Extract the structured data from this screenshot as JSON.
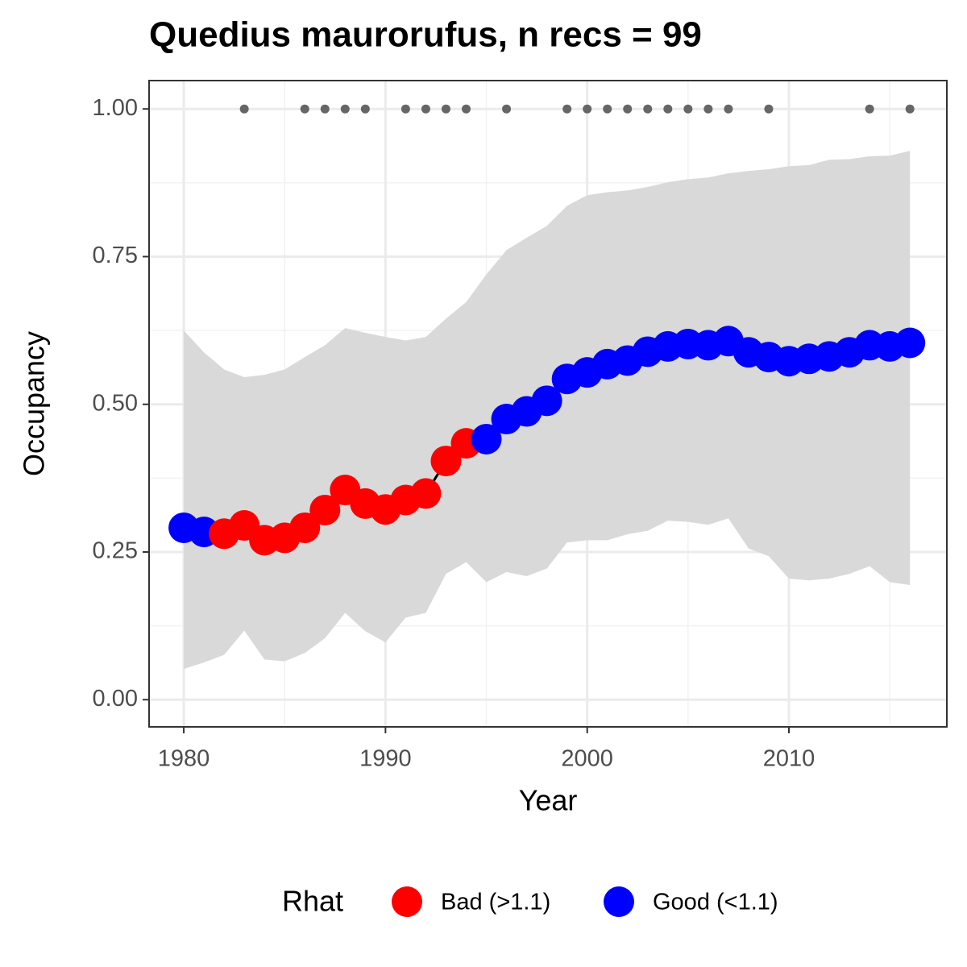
{
  "chart_data": {
    "type": "line",
    "title": "Quedius maurorufus, n recs = 99",
    "x_label": "Year",
    "y_label": "Occupancy",
    "legend_title": "Rhat",
    "legend_position": "bottom",
    "x": [
      1980,
      1981,
      1982,
      1983,
      1984,
      1985,
      1986,
      1987,
      1988,
      1989,
      1990,
      1991,
      1992,
      1993,
      1994,
      1995,
      1996,
      1997,
      1998,
      1999,
      2000,
      2001,
      2002,
      2003,
      2004,
      2005,
      2006,
      2007,
      2008,
      2009,
      2010,
      2011,
      2012,
      2013,
      2014,
      2015,
      2016
    ],
    "series": [
      {
        "name": "Bad (>1.1)",
        "color": "#ff0000",
        "values": [
          null,
          null,
          0.281,
          0.295,
          0.27,
          0.274,
          0.291,
          0.321,
          0.355,
          0.332,
          0.322,
          0.338,
          0.349,
          0.404,
          0.434,
          null,
          null,
          null,
          null,
          null,
          null,
          null,
          null,
          null,
          null,
          null,
          null,
          null,
          null,
          null,
          null,
          null,
          null,
          null,
          null,
          null,
          null
        ]
      },
      {
        "name": "Good (<1.1)",
        "color": "#0000ff",
        "values": [
          0.291,
          0.284,
          null,
          null,
          null,
          null,
          null,
          null,
          null,
          null,
          null,
          null,
          null,
          null,
          null,
          0.441,
          0.475,
          0.488,
          0.506,
          0.543,
          0.554,
          0.568,
          0.574,
          0.589,
          0.598,
          0.602,
          0.6,
          0.607,
          0.588,
          0.58,
          0.573,
          0.577,
          0.581,
          0.588,
          0.6,
          0.598,
          0.604
        ]
      }
    ],
    "line_color": "#000000",
    "band": {
      "color": "#d9d9d9",
      "upper": [
        0.625,
        0.588,
        0.559,
        0.546,
        0.55,
        0.559,
        0.58,
        0.6,
        0.629,
        0.621,
        0.614,
        0.608,
        0.614,
        0.645,
        0.673,
        0.72,
        0.761,
        0.782,
        0.802,
        0.836,
        0.854,
        0.859,
        0.862,
        0.868,
        0.876,
        0.881,
        0.884,
        0.891,
        0.895,
        0.898,
        0.903,
        0.905,
        0.914,
        0.915,
        0.92,
        0.921,
        0.929
      ],
      "lower": [
        0.052,
        0.063,
        0.076,
        0.117,
        0.068,
        0.065,
        0.079,
        0.104,
        0.147,
        0.116,
        0.097,
        0.139,
        0.147,
        0.213,
        0.233,
        0.199,
        0.216,
        0.209,
        0.222,
        0.266,
        0.27,
        0.27,
        0.28,
        0.286,
        0.303,
        0.301,
        0.296,
        0.307,
        0.256,
        0.243,
        0.205,
        0.202,
        0.205,
        0.213,
        0.226,
        0.199,
        0.194
      ]
    },
    "records": {
      "color": "#666666",
      "x": [
        1983,
        1986,
        1987,
        1988,
        1989,
        1991,
        1992,
        1993,
        1994,
        1996,
        1999,
        2000,
        2001,
        2002,
        2003,
        2004,
        2005,
        2006,
        2007,
        2009,
        2014,
        2016
      ],
      "values": [
        1,
        1,
        1,
        1,
        1,
        1,
        1,
        1,
        1,
        1,
        1,
        1,
        1,
        1,
        1,
        1,
        1,
        1,
        1,
        1,
        1,
        1
      ]
    },
    "xlim": [
      1978.28,
      2017.83
    ],
    "ylim": [
      -0.046,
      1.048
    ],
    "xticks": [
      1980,
      1990,
      2000,
      2010
    ],
    "yticks": [
      {
        "value": 0,
        "label": "0.00"
      },
      {
        "value": 0.25,
        "label": "0.25"
      },
      {
        "value": 0.5,
        "label": "0.50"
      },
      {
        "value": 0.75,
        "label": "0.75"
      },
      {
        "value": 1,
        "label": "1.00"
      }
    ],
    "minor_xticks": [
      1985,
      1995,
      2005,
      2015
    ],
    "minor_yticks": [
      0.125,
      0.375,
      0.625,
      0.875
    ],
    "grid": true
  }
}
